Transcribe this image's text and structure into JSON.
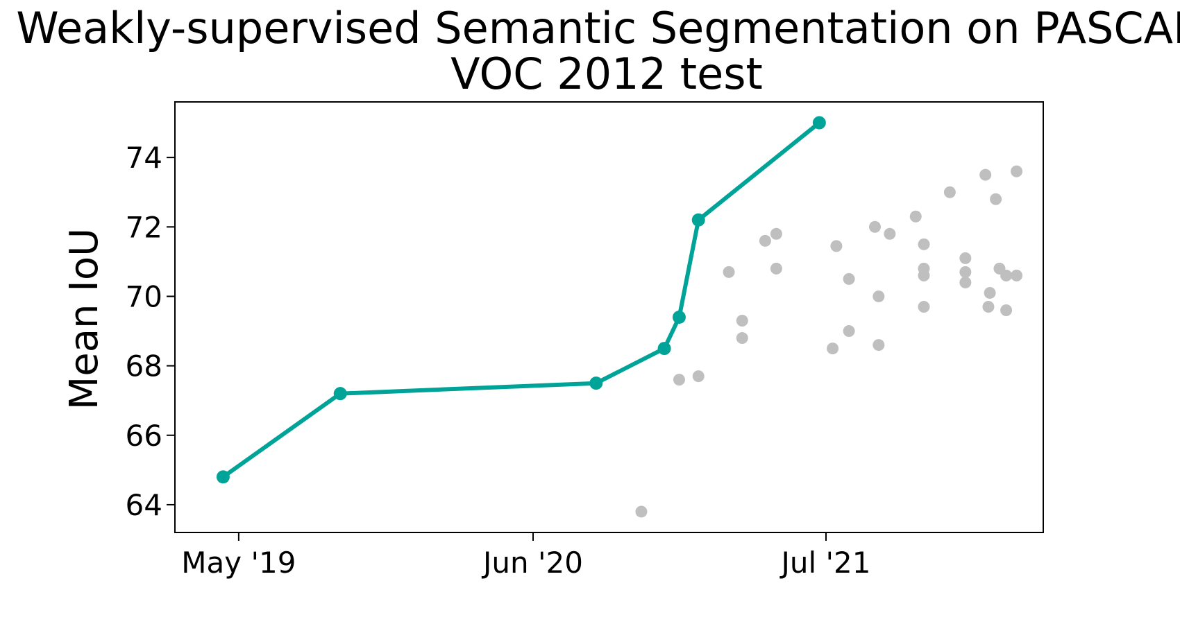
{
  "chart_data": {
    "type": "scatter",
    "title_line1": "Weakly-supervised Semantic Segmentation on PASCAL",
    "title_line2": "VOC 2012 test",
    "xlabel": "",
    "ylabel": "Mean IoU",
    "xlim": [
      "2019-02-04",
      "2022-04-20"
    ],
    "ylim": [
      63.2,
      75.6
    ],
    "x_ticks": [
      {
        "date": "2019-05-01",
        "label": "May '19"
      },
      {
        "date": "2020-06-01",
        "label": "Jun '20"
      },
      {
        "date": "2021-07-01",
        "label": "Jul '21"
      }
    ],
    "y_ticks": [
      64,
      66,
      68,
      70,
      72,
      74
    ],
    "grid": false,
    "legend": "none",
    "colors": {
      "sota": "#00a398",
      "other": "#bfbfbf"
    },
    "series": [
      {
        "kind": "line",
        "points": [
          {
            "x": "2019-04-10",
            "y": 64.8
          },
          {
            "x": "2019-09-15",
            "y": 67.2
          },
          {
            "x": "2020-08-25",
            "y": 67.5
          },
          {
            "x": "2020-11-25",
            "y": 68.5
          },
          {
            "x": "2020-12-15",
            "y": 69.4
          },
          {
            "x": "2021-01-10",
            "y": 72.2
          },
          {
            "x": "2021-06-22",
            "y": 75.0
          }
        ]
      },
      {
        "kind": "scatter",
        "points": [
          {
            "x": "2020-10-25",
            "y": 63.8
          },
          {
            "x": "2020-12-15",
            "y": 67.6
          },
          {
            "x": "2021-01-10",
            "y": 67.7
          },
          {
            "x": "2021-02-20",
            "y": 70.7
          },
          {
            "x": "2021-03-10",
            "y": 69.3
          },
          {
            "x": "2021-03-10",
            "y": 68.8
          },
          {
            "x": "2021-04-10",
            "y": 71.6
          },
          {
            "x": "2021-04-25",
            "y": 71.8
          },
          {
            "x": "2021-04-25",
            "y": 70.8
          },
          {
            "x": "2021-07-10",
            "y": 68.5
          },
          {
            "x": "2021-07-15",
            "y": 71.45
          },
          {
            "x": "2021-08-01",
            "y": 70.5
          },
          {
            "x": "2021-08-01",
            "y": 69.0
          },
          {
            "x": "2021-09-05",
            "y": 72.0
          },
          {
            "x": "2021-09-10",
            "y": 70.0
          },
          {
            "x": "2021-09-10",
            "y": 68.6
          },
          {
            "x": "2021-09-25",
            "y": 71.8
          },
          {
            "x": "2021-10-30",
            "y": 72.3
          },
          {
            "x": "2021-11-10",
            "y": 71.5
          },
          {
            "x": "2021-11-10",
            "y": 70.8
          },
          {
            "x": "2021-11-10",
            "y": 70.6
          },
          {
            "x": "2021-11-10",
            "y": 69.7
          },
          {
            "x": "2021-12-15",
            "y": 73.0
          },
          {
            "x": "2022-01-05",
            "y": 71.1
          },
          {
            "x": "2022-01-05",
            "y": 70.7
          },
          {
            "x": "2022-01-05",
            "y": 70.4
          },
          {
            "x": "2022-02-01",
            "y": 73.5
          },
          {
            "x": "2022-02-05",
            "y": 69.7
          },
          {
            "x": "2022-02-07",
            "y": 70.1
          },
          {
            "x": "2022-02-15",
            "y": 72.8
          },
          {
            "x": "2022-02-20",
            "y": 70.8
          },
          {
            "x": "2022-03-01",
            "y": 70.6
          },
          {
            "x": "2022-03-01",
            "y": 69.6
          },
          {
            "x": "2022-03-15",
            "y": 73.6
          },
          {
            "x": "2022-03-15",
            "y": 70.6
          }
        ]
      }
    ]
  }
}
